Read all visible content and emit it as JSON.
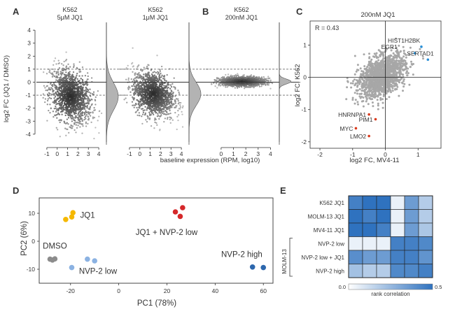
{
  "panels": {
    "A": {
      "letter": "A",
      "ylabel": "log2 FC (JQ1 / DMSO)",
      "shared_xlabel": "baseline expression (RPM, log10)",
      "sub": [
        {
          "line1": "K562",
          "line2": "5μM JQ1"
        },
        {
          "line1": "K562",
          "line2": "1μM JQ1"
        }
      ]
    },
    "B": {
      "letter": "B",
      "line1": "K562",
      "line2": "200nM JQ1"
    },
    "C": {
      "letter": "C",
      "title": "200nM JQ1",
      "r_label": "R = 0.43",
      "xlabel": "log2 FC, MV4-11",
      "ylabel": "log2 FC, K562"
    },
    "D": {
      "letter": "D",
      "xlabel": "PC1 (78%)",
      "ylabel": "PC2 (6%)"
    },
    "E": {
      "letter": "E",
      "group_label": "MOLM-13",
      "colorbar_label": "rank correlation"
    }
  },
  "colors": {
    "gray_points": "#505050",
    "density_fill": "#b3b3b3",
    "scatter_c": "#a7a7a7",
    "blue_highlight": "#2a8fd6",
    "red_highlight": "#d9391c",
    "jq1": "#f5b800",
    "jq1_nvp_low": "#d5282a",
    "nvp_high": "#2d67ad",
    "dmso": "#8c8c8c",
    "nvp_low": "#8bb2e2",
    "heat_low": "#ffffff",
    "heat_high": "#2f72bf"
  },
  "chart_data": [
    {
      "id": "A1",
      "type": "scatter",
      "title": "K562 5μM JQ1",
      "xticks": [
        -1,
        0,
        1,
        2,
        3,
        4
      ],
      "yticks": [
        -4,
        -3,
        -2,
        -1,
        0,
        1,
        2,
        3,
        4
      ],
      "xlim": [
        -1.6,
        4.6
      ],
      "ylim": [
        -4.6,
        4.6
      ],
      "hlines": [
        0,
        1,
        -1
      ],
      "cloud": {
        "center_x": 1.3,
        "center_y": -1.1,
        "sd_x": 1.0,
        "sd_y": 1.0,
        "y_tilt": -0.3
      }
    },
    {
      "id": "A2",
      "type": "scatter",
      "title": "K562 1μM JQ1",
      "xticks": [
        -1,
        0,
        1,
        2,
        3,
        4
      ],
      "xlim": [
        -1.6,
        4.6
      ],
      "ylim": [
        -4.6,
        4.6
      ],
      "hlines": [
        0,
        1,
        -1
      ],
      "cloud": {
        "center_x": 1.3,
        "center_y": -0.9,
        "sd_x": 1.0,
        "sd_y": 0.85,
        "y_tilt": -0.25
      }
    },
    {
      "id": "B",
      "type": "scatter",
      "title": "K562 200nM JQ1",
      "xticks": [
        0,
        1,
        2,
        3,
        4
      ],
      "xlim": [
        -0.9,
        4.6
      ],
      "ylim": [
        -4.6,
        4.6
      ],
      "hlines": [
        0,
        1,
        -1
      ],
      "cloud": {
        "center_x": 1.7,
        "center_y": 0.05,
        "sd_x": 0.9,
        "sd_y": 0.18,
        "y_tilt": 0
      }
    },
    {
      "id": "C",
      "type": "scatter",
      "title": "200nM JQ1",
      "xticks": [
        -2,
        -1,
        0,
        1
      ],
      "yticks": [
        -2,
        -1,
        0,
        1
      ],
      "xlim": [
        -2.3,
        1.7
      ],
      "ylim": [
        -2.2,
        1.75
      ],
      "cloud": {
        "center_x": -0.1,
        "center_y": 0.05,
        "sd_x": 0.35,
        "sd_y": 0.33,
        "corr": 0.43
      },
      "highlighted": [
        {
          "label": "HIST1H2BK",
          "x": 1.1,
          "y": 0.95,
          "color": "blue"
        },
        {
          "label": "EGR1",
          "x": 0.9,
          "y": 0.75,
          "color": "blue"
        },
        {
          "label": "SERTAD1",
          "x": 1.3,
          "y": 0.55,
          "color": "blue"
        },
        {
          "label": "HNRNPA1",
          "x": -0.5,
          "y": -1.15,
          "color": "red"
        },
        {
          "label": "PIM1",
          "x": -0.3,
          "y": -1.3,
          "color": "red"
        },
        {
          "label": "MYC",
          "x": -0.9,
          "y": -1.58,
          "color": "red"
        },
        {
          "label": "LMO2",
          "x": -0.5,
          "y": -1.82,
          "color": "red"
        }
      ]
    },
    {
      "id": "D",
      "type": "scatter",
      "xlabel": "PC1 (78%)",
      "ylabel": "PC2 (6%)",
      "xticks": [
        -20,
        0,
        20,
        40,
        60
      ],
      "yticks": [
        -10,
        0,
        10
      ],
      "xlim": [
        -33,
        64
      ],
      "ylim": [
        -15,
        15.5
      ],
      "series": [
        {
          "name": "JQ1",
          "color": "jq1",
          "points": [
            [
              -22,
              7.8
            ],
            [
              -19.5,
              8.7
            ],
            [
              -19,
              10.2
            ]
          ],
          "label_x": -16,
          "label_y": 8.4
        },
        {
          "name": "JQ1 + NVP-2 low",
          "color": "jq1_nvp_low",
          "points": [
            [
              23.5,
              10.5
            ],
            [
              26.5,
              12
            ],
            [
              25.5,
              8.9
            ]
          ],
          "label_x": 7,
          "label_y": 2.2
        },
        {
          "name": "DMSO",
          "color": "dmso",
          "points": [
            [
              -28.5,
              -6.4
            ],
            [
              -27.5,
              -6.7
            ],
            [
              -26.5,
              -6.3
            ]
          ],
          "label_x": -31.5,
          "label_y": -2.6
        },
        {
          "name": "NVP-2 low",
          "color": "nvp_low",
          "points": [
            [
              -13,
              -6.4
            ],
            [
              -10,
              -7
            ],
            [
              -19.5,
              -9.4
            ]
          ],
          "label_x": -16.5,
          "label_y": -11.6
        },
        {
          "name": "NVP-2 high",
          "color": "nvp_high",
          "points": [
            [
              55.5,
              -9.2
            ],
            [
              60,
              -9.4
            ]
          ],
          "label_x": 42.5,
          "label_y": -5.6
        }
      ]
    },
    {
      "id": "E",
      "type": "heatmap",
      "rows": [
        "K562 JQ1",
        "MOLM-13 JQ1",
        "MV4-11 JQ1",
        "NVP-2 low",
        "NVP-2 low + JQ1",
        "NVP-2 high"
      ],
      "colorbar_min": 0.0,
      "colorbar_max": 0.5,
      "colorbar_ticks": [
        "0.0",
        "0.5"
      ],
      "colorbar_label": "rank correlation",
      "values": [
        [
          0.45,
          0.5,
          0.5,
          0.05,
          0.35,
          0.18
        ],
        [
          0.5,
          0.45,
          0.5,
          0.05,
          0.35,
          0.18
        ],
        [
          0.5,
          0.5,
          0.45,
          0.05,
          0.35,
          0.2
        ],
        [
          0.05,
          0.05,
          0.05,
          0.45,
          0.45,
          0.42
        ],
        [
          0.4,
          0.35,
          0.35,
          0.45,
          0.45,
          0.38
        ],
        [
          0.22,
          0.18,
          0.18,
          0.42,
          0.42,
          0.45
        ]
      ]
    }
  ]
}
